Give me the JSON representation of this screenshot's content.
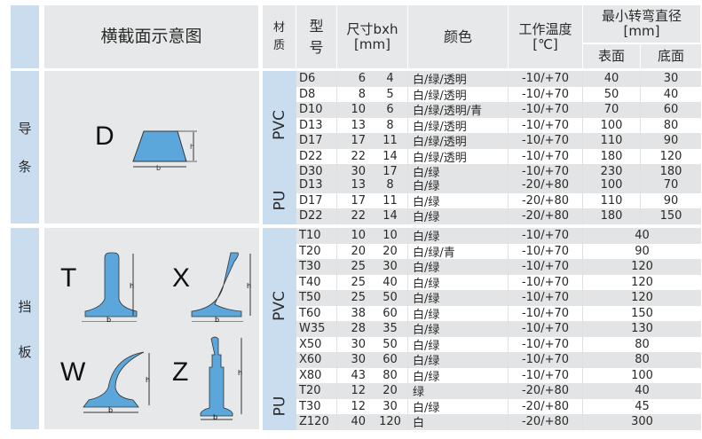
{
  "header": {
    "figure": "横截面示意图",
    "material": "材质",
    "model": "型号",
    "size": "尺寸bxh [mm]",
    "color": "颜色",
    "temp": "工作温度 [℃]",
    "bend": "最小转弯直径 [mm]",
    "surface": "表面",
    "bottom": "底面"
  },
  "guide": {
    "label_1": "导",
    "label_2": "条",
    "shape_letter": "D",
    "groups": [
      {
        "material": "PVC",
        "rows": [
          [
            "D6",
            "6",
            "4",
            "白/绿/透明",
            "-10/+70",
            "40",
            "30"
          ],
          [
            "D8",
            "8",
            "5",
            "白/绿/透明",
            "-10/+70",
            "50",
            "40"
          ],
          [
            "D10",
            "10",
            "6",
            "白/绿/透明/青",
            "-10/+70",
            "70",
            "60"
          ],
          [
            "D13",
            "13",
            "8",
            "白/绿/透明",
            "-10/+70",
            "100",
            "80"
          ],
          [
            "D17",
            "17",
            "11",
            "白/绿/透明",
            "-10/+70",
            "110",
            "90"
          ],
          [
            "D22",
            "22",
            "14",
            "白/绿/透明",
            "-10/+70",
            "180",
            "120"
          ],
          [
            "D30",
            "30",
            "17",
            "白/绿",
            "-10/+70",
            "230",
            "180"
          ]
        ]
      },
      {
        "material": "PU",
        "rows": [
          [
            "D13",
            "13",
            "8",
            "白/绿",
            "-20/+80",
            "100",
            "70"
          ],
          [
            "D17",
            "17",
            "11",
            "白/绿",
            "-20/+80",
            "110",
            "90"
          ],
          [
            "D22",
            "22",
            "14",
            "白/绿",
            "-20/+80",
            "180",
            "150"
          ]
        ]
      }
    ]
  },
  "baffle": {
    "label_1": "挡",
    "label_2": "板",
    "shape_letters": [
      "T",
      "X",
      "W",
      "Z"
    ],
    "groups": [
      {
        "material": "PVC",
        "rows": [
          [
            "T10",
            "10",
            "10",
            "白/绿",
            "-10/+70",
            "40"
          ],
          [
            "T20",
            "20",
            "20",
            "白/绿/青",
            "-10/+70",
            "90"
          ],
          [
            "T30",
            "25",
            "30",
            "白/绿",
            "-10/+70",
            "120"
          ],
          [
            "T40",
            "25",
            "40",
            "白/绿",
            "-10/+70",
            "120"
          ],
          [
            "T50",
            "25",
            "50",
            "白/绿",
            "-10/+70",
            "120"
          ],
          [
            "T60",
            "38",
            "60",
            "白/绿",
            "-10/+70",
            "150"
          ],
          [
            "W35",
            "28",
            "35",
            "白/绿",
            "-10/+70",
            "130"
          ],
          [
            "X50",
            "30",
            "50",
            "白/绿",
            "-10/+70",
            "80"
          ],
          [
            "X60",
            "30",
            "60",
            "白/绿",
            "-10/+70",
            "80"
          ],
          [
            "X80",
            "43",
            "80",
            "白/绿",
            "-10/+70",
            "100"
          ]
        ]
      },
      {
        "material": "PU",
        "rows": [
          [
            "T20",
            "12",
            "20",
            "绿",
            "-20/+80",
            "40"
          ],
          [
            "T30",
            "12",
            "30",
            "白/绿",
            "-20/+80",
            "45"
          ],
          [
            "Z120",
            "40",
            "120",
            "白",
            "-20/+80",
            "300"
          ]
        ]
      }
    ]
  },
  "dim_labels": {
    "b": "b",
    "h": "h"
  },
  "colors": {
    "section_blue": "#c9ddef",
    "panel_gray": "#e7e8e9",
    "shape_fill": "#5ba7dc"
  }
}
